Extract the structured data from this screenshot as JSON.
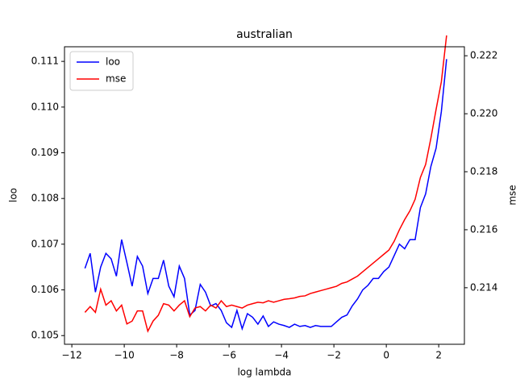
{
  "chart_data": {
    "type": "line",
    "title": "australian",
    "xlabel": "log lambda",
    "ylabel": "loo",
    "y2label": "mse",
    "legend": "upper left",
    "grid": false,
    "x": [
      -11.5,
      -11.3,
      -11.1,
      -10.9,
      -10.7,
      -10.5,
      -10.3,
      -10.1,
      -9.9,
      -9.7,
      -9.5,
      -9.3,
      -9.1,
      -8.9,
      -8.7,
      -8.5,
      -8.3,
      -8.1,
      -7.9,
      -7.7,
      -7.5,
      -7.3,
      -7.1,
      -6.9,
      -6.7,
      -6.5,
      -6.3,
      -6.1,
      -5.9,
      -5.7,
      -5.5,
      -5.3,
      -5.1,
      -4.9,
      -4.7,
      -4.5,
      -4.3,
      -4.1,
      -3.9,
      -3.7,
      -3.5,
      -3.3,
      -3.1,
      -2.9,
      -2.7,
      -2.5,
      -2.3,
      -2.1,
      -1.9,
      -1.7,
      -1.5,
      -1.3,
      -1.1,
      -0.9,
      -0.7,
      -0.5,
      -0.3,
      -0.1,
      0.1,
      0.3,
      0.5,
      0.7,
      0.9,
      1.1,
      1.3,
      1.5,
      1.7,
      1.9,
      2.1,
      2.3
    ],
    "series": [
      {
        "name": "loo",
        "color": "#0000ff",
        "axis": "y",
        "values": [
          0.10647,
          0.1068,
          0.10595,
          0.1065,
          0.1068,
          0.10668,
          0.1063,
          0.1071,
          0.1066,
          0.10608,
          0.10673,
          0.10652,
          0.10592,
          0.10625,
          0.10625,
          0.10665,
          0.10608,
          0.10585,
          0.10652,
          0.10625,
          0.10545,
          0.10555,
          0.10612,
          0.10595,
          0.10565,
          0.1057,
          0.10555,
          0.10528,
          0.10518,
          0.10555,
          0.10515,
          0.10548,
          0.1054,
          0.10525,
          0.10543,
          0.1052,
          0.1053,
          0.10525,
          0.10522,
          0.10518,
          0.10525,
          0.1052,
          0.10522,
          0.10518,
          0.10522,
          0.1052,
          0.1052,
          0.1052,
          0.1053,
          0.1054,
          0.10545,
          0.10565,
          0.1058,
          0.106,
          0.1061,
          0.10625,
          0.10625,
          0.1064,
          0.1065,
          0.10675,
          0.107,
          0.1069,
          0.1071,
          0.1071,
          0.1078,
          0.1081,
          0.1087,
          0.1091,
          0.1099,
          0.11105
        ]
      },
      {
        "name": "mse",
        "color": "#ff0000",
        "axis": "y2",
        "values": [
          0.21315,
          0.21335,
          0.21315,
          0.21395,
          0.2134,
          0.21355,
          0.2132,
          0.2134,
          0.21275,
          0.21285,
          0.2132,
          0.2132,
          0.2125,
          0.21285,
          0.21305,
          0.21345,
          0.2134,
          0.2132,
          0.2134,
          0.21355,
          0.213,
          0.2133,
          0.21335,
          0.2132,
          0.2134,
          0.2133,
          0.21355,
          0.21335,
          0.2134,
          0.21335,
          0.2133,
          0.2134,
          0.21345,
          0.2135,
          0.21348,
          0.21355,
          0.2135,
          0.21355,
          0.2136,
          0.21362,
          0.21365,
          0.2137,
          0.21372,
          0.2138,
          0.21385,
          0.2139,
          0.21395,
          0.214,
          0.21405,
          0.21415,
          0.2142,
          0.2143,
          0.2144,
          0.21455,
          0.2147,
          0.21485,
          0.215,
          0.21515,
          0.2153,
          0.2156,
          0.216,
          0.21635,
          0.21665,
          0.21705,
          0.2178,
          0.21825,
          0.21915,
          0.22015,
          0.2211,
          0.2227
        ]
      }
    ],
    "xlim": [
      -12.28,
      2.98
    ],
    "xticks": [
      {
        "value": -12,
        "label": "−12"
      },
      {
        "value": -10,
        "label": "−10"
      },
      {
        "value": -8,
        "label": "−8"
      },
      {
        "value": -6,
        "label": "−6"
      },
      {
        "value": -4,
        "label": "−4"
      },
      {
        "value": -2,
        "label": "−2"
      },
      0,
      2
    ],
    "ylim": [
      0.10481,
      0.11132
    ],
    "yticks": [
      0.105,
      0.106,
      0.107,
      0.108,
      0.109,
      {
        "value": 0.11,
        "label": "0.110"
      },
      0.111
    ],
    "y2lim": [
      0.21205,
      0.22231
    ],
    "y2ticks": [
      0.214,
      0.216,
      0.218,
      {
        "value": 0.22,
        "label": "0.220"
      },
      0.222
    ]
  }
}
